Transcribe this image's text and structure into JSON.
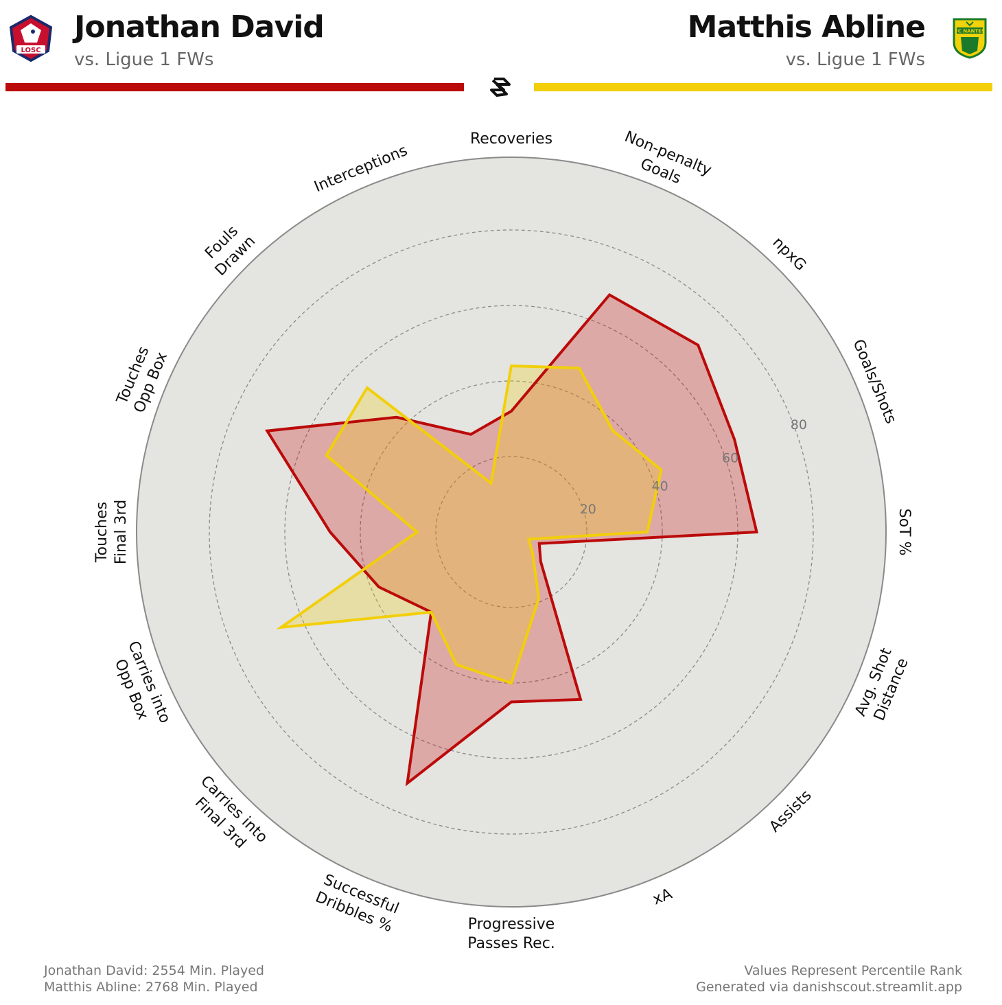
{
  "header": {
    "player1": {
      "name": "Jonathan David",
      "subtitle": "vs. Ligue 1 FWs",
      "club_logo_text": "LOSC"
    },
    "player2": {
      "name": "Matthis Abline",
      "subtitle": "vs. Ligue 1 FWs",
      "club_logo_text": "FC NANTES"
    }
  },
  "colors": {
    "player1": "#bb0a0a",
    "player2": "#f2cf0a",
    "player1_fill": "rgba(204,10,10,0.27)",
    "player2_fill": "rgba(242,207,10,0.27)",
    "background_disc": "#e4e4e0",
    "grid": "#8a8a8a"
  },
  "chart_data": {
    "type": "radar",
    "scale": "percentile",
    "range": [
      0,
      100
    ],
    "rings": [
      20,
      40,
      60,
      80
    ],
    "ring_labels": [
      "20",
      "40",
      "60",
      "80"
    ],
    "categories": [
      "Recoveries",
      "Non-penalty Goals",
      "npxG",
      "Goals/Shots",
      "SoT %",
      "Avg. Shot Distance",
      "Assists",
      "xA",
      "Progressive Passes Rec.",
      "Successful Dribbles %",
      "Carries into Final 3rd",
      "Carries into Opp Box",
      "Touches Final 3rd",
      "Touches Opp Box",
      "Fouls Drawn",
      "Interceptions"
    ],
    "series": [
      {
        "name": "Jonathan David",
        "values": [
          32,
          68,
          70,
          64,
          65,
          8,
          11,
          48,
          45,
          72,
          30,
          38,
          48,
          70,
          43,
          28
        ]
      },
      {
        "name": "Matthis Abline",
        "values": [
          44,
          47,
          38,
          43,
          36,
          5,
          8,
          19,
          40,
          38,
          30,
          66,
          25,
          53,
          54,
          14
        ]
      }
    ]
  },
  "footer": {
    "left": [
      "Jonathan David: 2554 Min. Played",
      "Matthis Abline: 2768 Min. Played"
    ],
    "right": [
      "Values Represent Percentile Rank",
      "Generated via danishscout.streamlit.app"
    ]
  }
}
